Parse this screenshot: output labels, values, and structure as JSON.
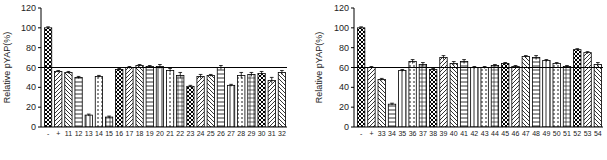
{
  "chart_data": [
    {
      "type": "bar",
      "y_label": "Relative pYAP(%)",
      "color": "#000000",
      "categories": [
        "-",
        "+",
        "11",
        "12",
        "13",
        "14",
        "15",
        "16",
        "17",
        "18",
        "19",
        "20",
        "21",
        "22",
        "23",
        "24",
        "25",
        "26",
        "27",
        "28",
        "29",
        "30",
        "31",
        "32"
      ],
      "values": [
        100,
        56,
        55,
        50,
        12,
        51,
        10,
        58,
        60,
        62,
        61,
        61,
        57,
        52,
        41,
        51,
        52,
        60,
        42,
        52,
        53,
        54,
        47,
        55
      ],
      "errors": [
        1,
        1,
        1,
        1,
        1,
        1,
        1,
        1,
        1,
        1,
        1,
        2,
        2,
        3,
        1,
        2,
        1,
        2,
        1,
        3,
        2,
        2,
        3,
        2
      ],
      "threshold": 60,
      "ylim": [
        0,
        120
      ],
      "yticks": [
        0,
        20,
        40,
        60,
        80,
        100,
        120
      ]
    },
    {
      "type": "bar",
      "y_label": "Relative pYAP(%)",
      "color": "#000000",
      "categories": [
        "-",
        "+",
        "33",
        "34",
        "35",
        "36",
        "37",
        "38",
        "39",
        "40",
        "41",
        "42",
        "43",
        "44",
        "45",
        "46",
        "47",
        "48",
        "49",
        "50",
        "51",
        "52",
        "53",
        "54"
      ],
      "values": [
        100,
        60,
        48,
        23,
        57,
        66,
        63,
        58,
        70,
        64,
        66,
        60,
        60,
        62,
        64,
        61,
        71,
        70,
        67,
        64,
        61,
        78,
        75,
        63
      ],
      "errors": [
        1,
        1,
        1,
        1,
        1,
        2,
        2,
        1,
        2,
        2,
        2,
        1,
        1,
        1,
        1,
        1,
        1,
        2,
        1,
        1,
        1,
        1,
        1,
        2
      ],
      "threshold": 60,
      "ylim": [
        0,
        120
      ],
      "yticks": [
        0,
        20,
        40,
        60,
        80,
        100,
        120
      ]
    }
  ]
}
